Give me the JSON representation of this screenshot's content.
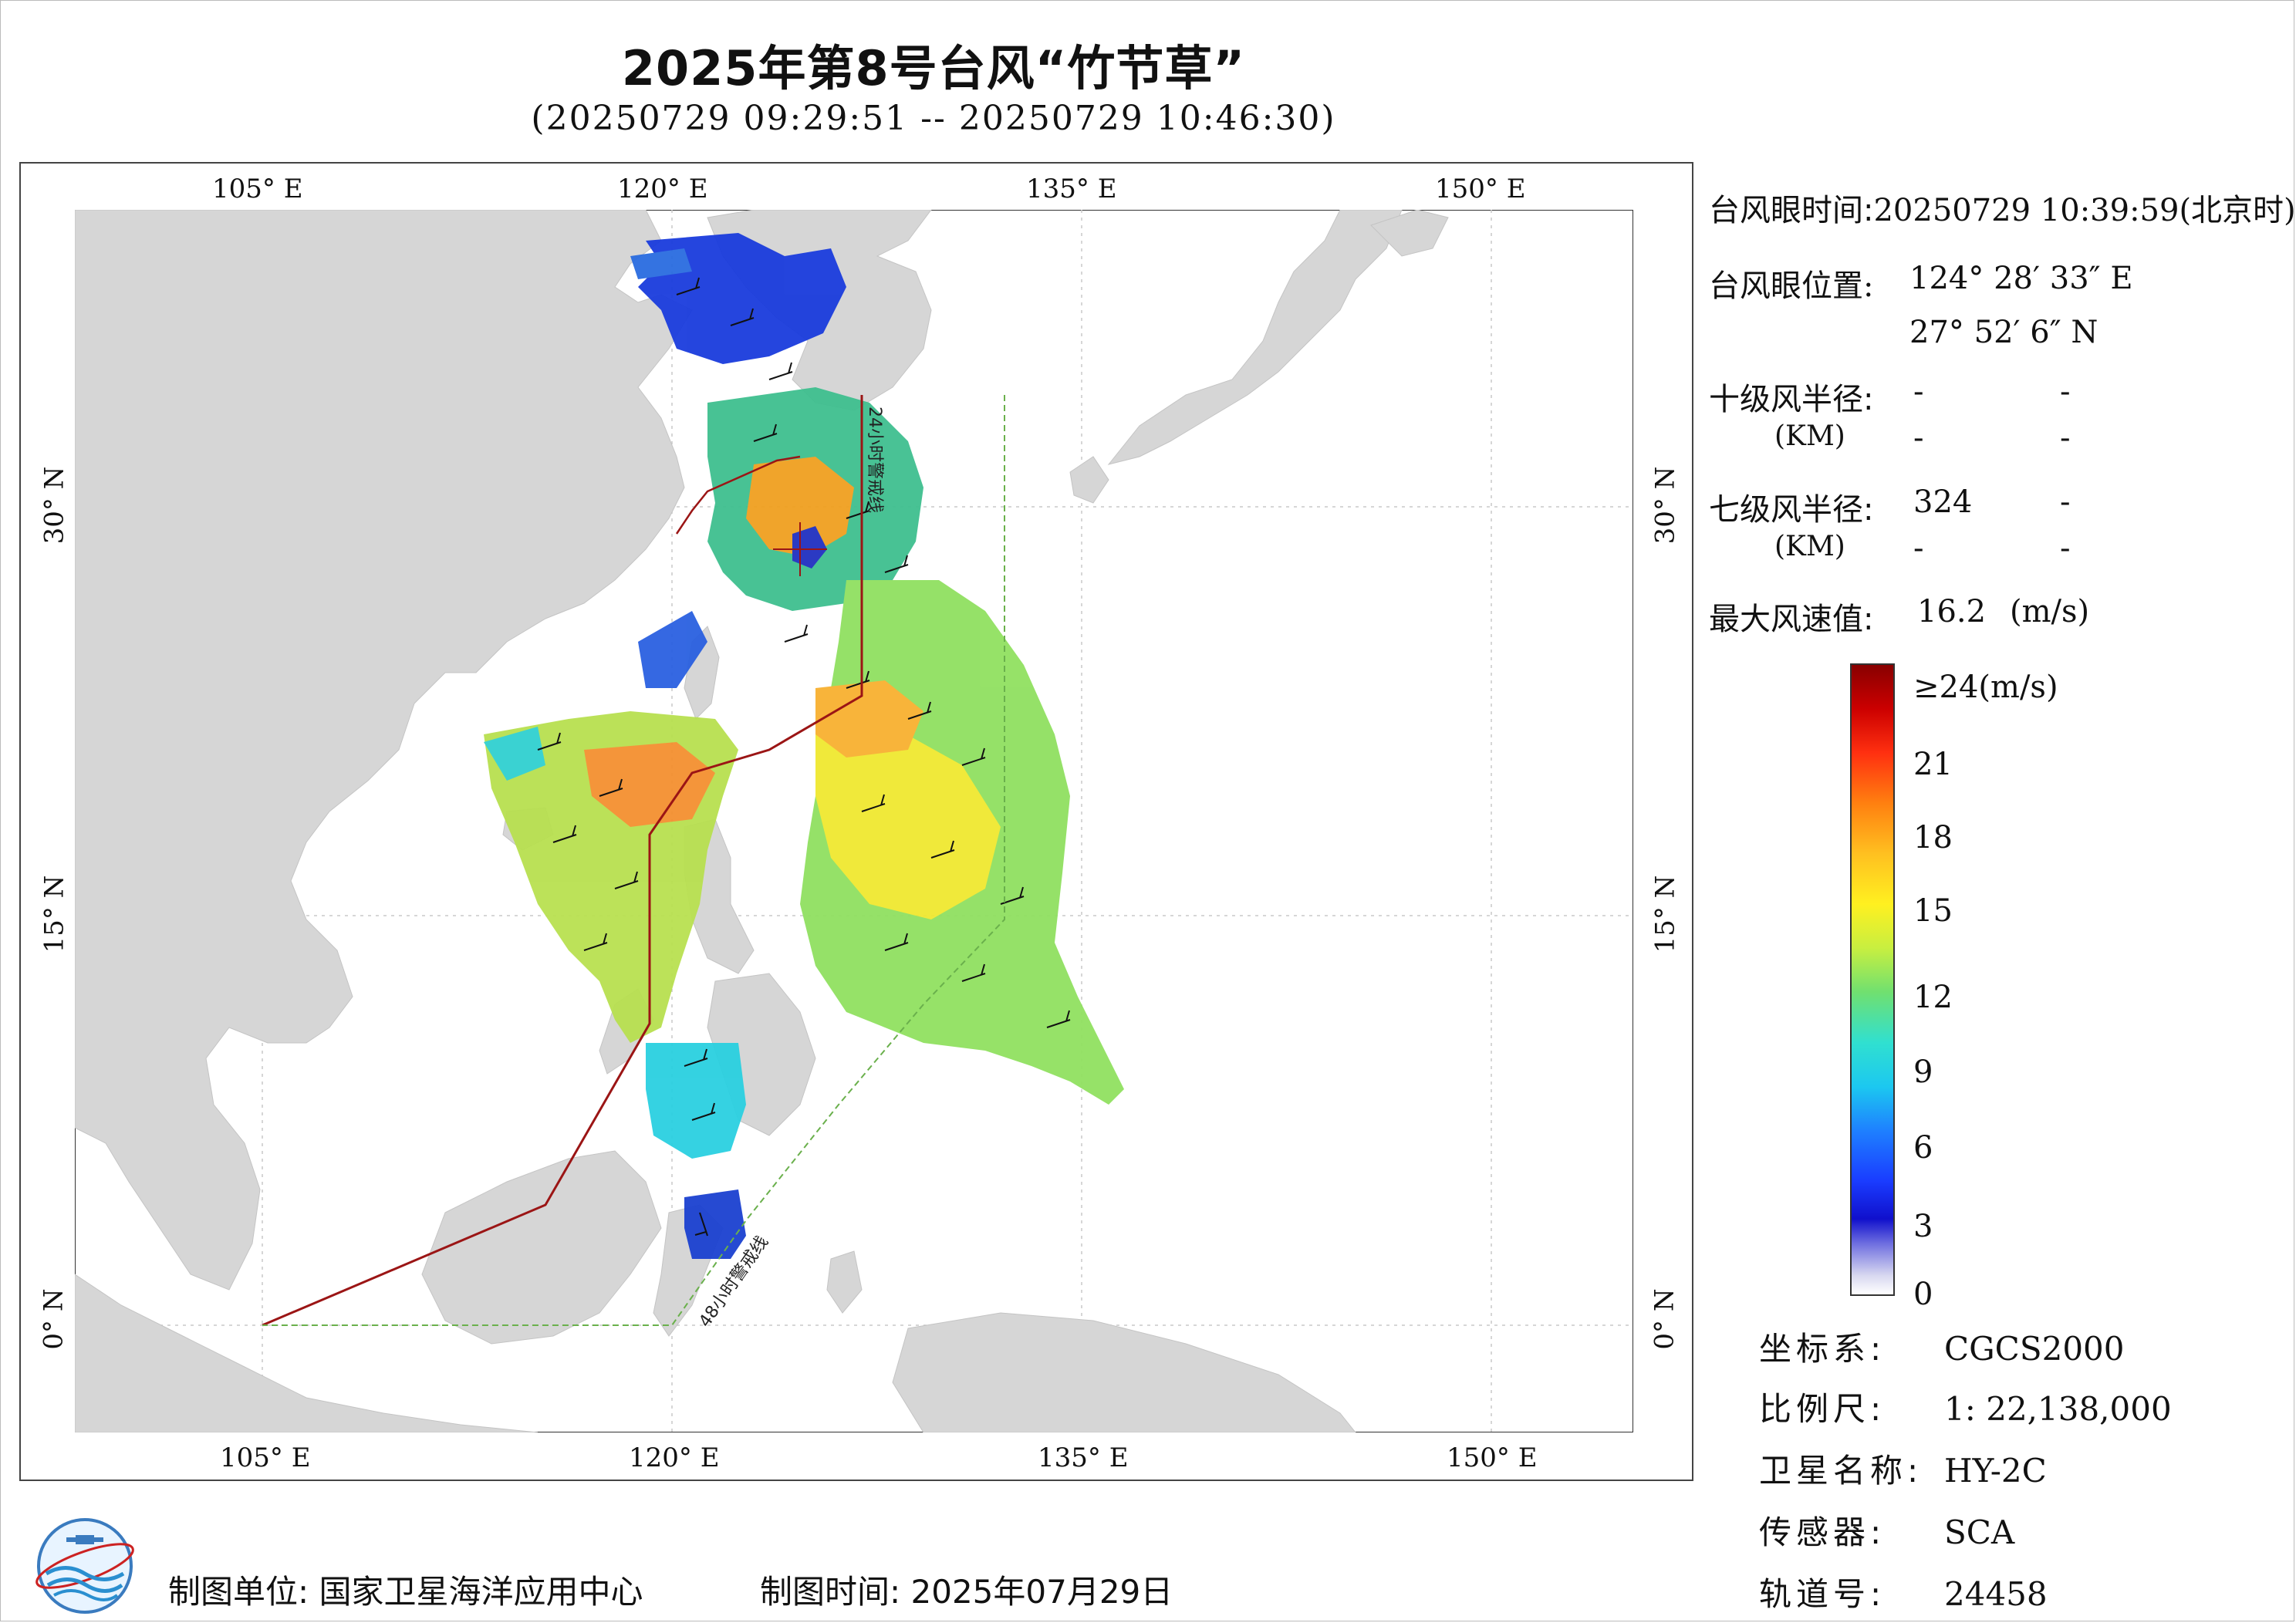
{
  "title": "2025年第8号台风“竹节草”",
  "subtitle": "(20250729 09:29:51 -- 20250729 10:46:30)",
  "axes": {
    "lon_labels": [
      "105° E",
      "120° E",
      "135° E",
      "150° E"
    ],
    "lat_labels": [
      "0° N",
      "15° N",
      "30° N"
    ],
    "lon_range": [
      98,
      155
    ],
    "lat_range": [
      -4,
      41
    ]
  },
  "map_labels": {
    "warning_24h": "24小时警戒线",
    "warning_48h": "48小时警戒线"
  },
  "colors": {
    "land": "#d8d8d8",
    "ocean": "#ffffff",
    "warning_24h_line": "#9b1515",
    "warning_48h_line": "#6ab04c",
    "grid": "#bbbbbb"
  },
  "info": {
    "eye_time_label": "台风眼时间:",
    "eye_time_value": "20250729 10:39:59(北京时)",
    "eye_pos_label": "台风眼位置:",
    "eye_lon": "124° 28′ 33″ E",
    "eye_lat": "27° 52′ 6″ N",
    "r10_label": "十级风半径:",
    "r10_values": [
      "-",
      "-"
    ],
    "r10_unit": "(KM)",
    "r10_values2": [
      "-",
      "-"
    ],
    "r7_label": "七级风半径:",
    "r7_values": [
      "324",
      "-"
    ],
    "r7_unit": "(KM)",
    "r7_values2": [
      "-",
      "-"
    ],
    "max_wind_label": "最大风速值:",
    "max_wind_value": "16.2",
    "max_wind_unit": "(m/s)"
  },
  "colorbar": {
    "title": "≥24(m/s)",
    "ticks": [
      "21",
      "18",
      "15",
      "12",
      "9",
      "6",
      "3",
      "0"
    ]
  },
  "meta": {
    "crs_label": "坐标系:",
    "crs_value": "CGCS2000",
    "scale_label": "比例尺:",
    "scale_value": "1: 22,138,000",
    "sat_label": "卫星名称:",
    "sat_value": "HY-2C",
    "sensor_label": "传感器:",
    "sensor_value": "SCA",
    "orbit_label": "轨道号:",
    "orbit_value": "24458"
  },
  "footer": {
    "unit": "制图单位: 国家卫星海洋应用中心",
    "time": "制图时间: 2025年07月29日"
  }
}
